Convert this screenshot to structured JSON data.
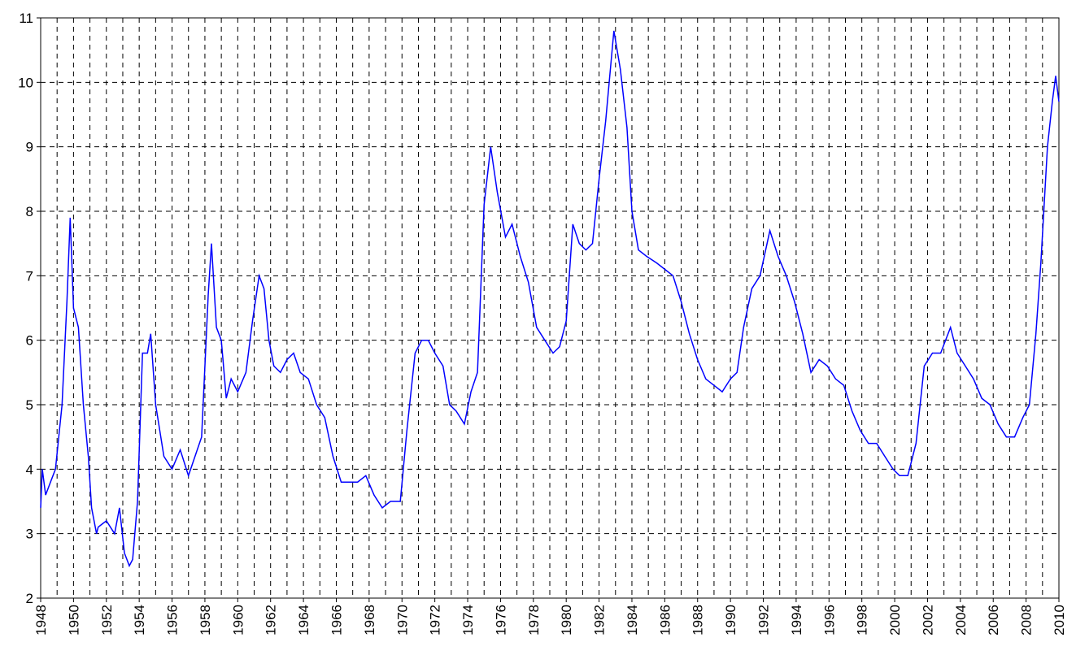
{
  "chart_data": {
    "type": "line",
    "x": [
      1948.0,
      1948.1,
      1948.3,
      1948.6,
      1948.9,
      1949.3,
      1949.6,
      1949.8,
      1950.0,
      1950.3,
      1950.6,
      1950.9,
      1951.1,
      1951.4,
      1951.5,
      1952.0,
      1952.5,
      1952.8,
      1953.1,
      1953.4,
      1953.6,
      1953.9,
      1954.2,
      1954.5,
      1954.7,
      1955.0,
      1955.5,
      1956.0,
      1956.5,
      1957.0,
      1957.4,
      1957.8,
      1958.2,
      1958.4,
      1958.7,
      1959.0,
      1959.3,
      1959.6,
      1960.0,
      1960.5,
      1960.9,
      1961.3,
      1961.6,
      1961.9,
      1962.2,
      1962.6,
      1963.0,
      1963.4,
      1963.8,
      1964.3,
      1964.8,
      1965.3,
      1965.8,
      1966.3,
      1966.8,
      1967.3,
      1967.8,
      1968.3,
      1968.8,
      1969.3,
      1969.9,
      1970.3,
      1970.8,
      1971.2,
      1971.6,
      1972.0,
      1972.5,
      1972.9,
      1973.3,
      1973.8,
      1974.2,
      1974.6,
      1975.0,
      1975.4,
      1975.8,
      1976.3,
      1976.7,
      1977.2,
      1977.7,
      1978.2,
      1978.7,
      1979.2,
      1979.6,
      1980.0,
      1980.4,
      1980.8,
      1981.2,
      1981.6,
      1982.0,
      1982.4,
      1982.9,
      1983.3,
      1983.7,
      1984.0,
      1984.4,
      1984.9,
      1985.5,
      1986.0,
      1986.5,
      1987.0,
      1987.5,
      1988.0,
      1988.5,
      1989.0,
      1989.5,
      1990.0,
      1990.4,
      1990.8,
      1991.3,
      1991.8,
      1992.4,
      1992.9,
      1993.4,
      1993.9,
      1994.4,
      1994.9,
      1995.4,
      1995.9,
      1996.4,
      1996.9,
      1997.4,
      1997.9,
      1998.4,
      1998.9,
      1999.4,
      1999.9,
      2000.3,
      2000.8,
      2001.3,
      2001.8,
      2002.3,
      2002.8,
      2003.4,
      2003.8,
      2004.3,
      2004.8,
      2005.3,
      2005.8,
      2006.3,
      2006.8,
      2007.3,
      2007.8,
      2008.2,
      2008.6,
      2008.9,
      2009.3,
      2009.6,
      2009.8,
      2010.0
    ],
    "series": [
      {
        "color": "#0000ff",
        "values": [
          3.4,
          4.0,
          3.6,
          3.8,
          4.0,
          5.0,
          6.6,
          7.9,
          6.5,
          6.2,
          5.0,
          4.2,
          3.4,
          3.0,
          3.1,
          3.2,
          3.0,
          3.4,
          2.7,
          2.5,
          2.6,
          3.5,
          5.8,
          5.8,
          6.1,
          5.0,
          4.2,
          4.0,
          4.3,
          3.9,
          4.2,
          4.5,
          6.7,
          7.5,
          6.2,
          6.0,
          5.1,
          5.4,
          5.2,
          5.5,
          6.3,
          7.0,
          6.8,
          6.0,
          5.6,
          5.5,
          5.7,
          5.8,
          5.5,
          5.4,
          5.0,
          4.8,
          4.2,
          3.8,
          3.8,
          3.8,
          3.9,
          3.6,
          3.4,
          3.5,
          3.5,
          4.6,
          5.8,
          6.0,
          6.0,
          5.8,
          5.6,
          5.0,
          4.9,
          4.7,
          5.2,
          5.5,
          8.1,
          9.0,
          8.3,
          7.6,
          7.8,
          7.3,
          6.9,
          6.2,
          6.0,
          5.8,
          5.9,
          6.3,
          7.8,
          7.5,
          7.4,
          7.5,
          8.5,
          9.4,
          10.8,
          10.2,
          9.3,
          8.0,
          7.4,
          7.3,
          7.2,
          7.1,
          7.0,
          6.6,
          6.1,
          5.7,
          5.4,
          5.3,
          5.2,
          5.4,
          5.5,
          6.2,
          6.8,
          7.0,
          7.7,
          7.3,
          7.0,
          6.6,
          6.1,
          5.5,
          5.7,
          5.6,
          5.4,
          5.3,
          4.9,
          4.6,
          4.4,
          4.4,
          4.2,
          4.0,
          3.9,
          3.9,
          4.4,
          5.6,
          5.8,
          5.8,
          6.2,
          5.8,
          5.6,
          5.4,
          5.1,
          5.0,
          4.7,
          4.5,
          4.5,
          4.8,
          5.0,
          6.1,
          7.2,
          9.0,
          9.7,
          10.1,
          9.7
        ]
      }
    ],
    "xlim": [
      1948,
      2010
    ],
    "xticks": [
      1948,
      1950,
      1952,
      1954,
      1956,
      1958,
      1960,
      1962,
      1964,
      1966,
      1968,
      1970,
      1972,
      1974,
      1976,
      1978,
      1980,
      1982,
      1984,
      1986,
      1988,
      1990,
      1992,
      1994,
      1996,
      1998,
      2000,
      2002,
      2004,
      2006,
      2008,
      2010
    ],
    "xgrid_minor": [
      1949,
      1951,
      1953,
      1955,
      1957,
      1959,
      1961,
      1963,
      1965,
      1967,
      1969,
      1971,
      1973,
      1975,
      1977,
      1979,
      1981,
      1983,
      1985,
      1987,
      1989,
      1991,
      1993,
      1995,
      1997,
      1999,
      2001,
      2003,
      2005,
      2007,
      2009
    ],
    "ylim": [
      2,
      11
    ],
    "yticks": [
      2,
      3,
      4,
      5,
      6,
      7,
      8,
      9,
      10,
      11
    ],
    "grid": true
  }
}
